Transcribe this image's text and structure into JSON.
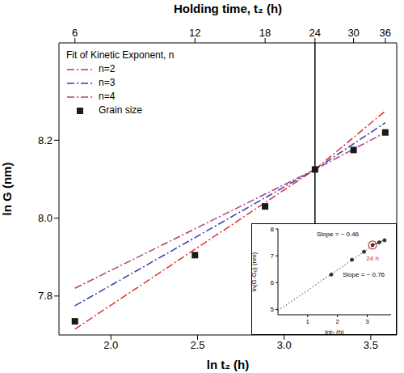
{
  "chart_data": {
    "type": "scatter",
    "x_label": "ln t₂ (h)",
    "y_label": "ln G (nm)",
    "xlim": [
      1.7,
      3.65
    ],
    "xticks": [
      {
        "value": 2,
        "label": "2.0"
      },
      2.5,
      {
        "value": 3,
        "label": "3.0"
      },
      3.5
    ],
    "ylim": [
      7.7,
      8.45
    ],
    "yticks": [
      7.8,
      {
        "value": 8,
        "label": "8.0"
      },
      8.2
    ],
    "top_axis": {
      "label": "Holding time, t₂ (h)",
      "ticks": [
        {
          "value": 1.792,
          "label": "6"
        },
        {
          "value": 2.485,
          "label": "12"
        },
        {
          "value": 2.89,
          "label": "18"
        },
        {
          "value": 3.178,
          "label": "24"
        },
        {
          "value": 3.401,
          "label": "30"
        },
        {
          "value": 3.584,
          "label": "36"
        }
      ]
    },
    "legend_title": "Fit of Kinetic Exponent, n",
    "legend": "upper left",
    "vertical_line": 3.178,
    "series": [
      {
        "name": "n=2",
        "type": "line",
        "color": "#e0302a",
        "line_style": "dashdot",
        "x": [
          1.792,
          3.178,
          3.584
        ],
        "values": [
          7.715,
          8.125,
          8.275
        ]
      },
      {
        "name": "n=3",
        "type": "line",
        "color": "#2d3fb0",
        "line_style": "dashdot",
        "x": [
          1.792,
          3.178,
          3.584
        ],
        "values": [
          7.775,
          8.125,
          8.245
        ]
      },
      {
        "name": "n=4",
        "type": "line",
        "color": "#b0407a",
        "line_style": "dashdot",
        "x": [
          1.792,
          3.178,
          3.584
        ],
        "values": [
          7.82,
          8.125,
          8.22
        ]
      },
      {
        "name": "Grain size",
        "type": "scatter",
        "color": "#1a1a1a",
        "marker": "square",
        "x": [
          1.792,
          2.485,
          2.89,
          3.178,
          3.401,
          3.584
        ],
        "values": [
          7.735,
          7.905,
          8.03,
          8.125,
          8.175,
          8.22
        ]
      }
    ],
    "inset": {
      "type": "scatter",
      "x_label": "lnt₂ (h)",
      "y_label": "ln(G-G₀) (nm)",
      "xlim": [
        0,
        3.8
      ],
      "xticks": [
        1,
        2,
        3
      ],
      "ylim": [
        4.8,
        8
      ],
      "yticks": [
        5,
        6,
        7,
        8
      ],
      "points": {
        "color": "#333333",
        "marker": "circle",
        "x": [
          1.792,
          2.485,
          2.89,
          3.178,
          3.401,
          3.584
        ],
        "values": [
          6.3,
          6.85,
          7.15,
          7.4,
          7.5,
          7.58
        ]
      },
      "fit_line": {
        "color": "#333333",
        "line_style": "dotted",
        "x": [
          0,
          3.178
        ],
        "values": [
          4.95,
          7.37
        ]
      },
      "late_line": {
        "color": "#333333",
        "line_style": "solid",
        "x": [
          3.178,
          3.584
        ],
        "values": [
          7.4,
          7.59
        ]
      },
      "highlight": {
        "x": 3.178,
        "value": 7.4,
        "label": "24 h",
        "color": "#d03030"
      },
      "annotations": [
        "Slope = ~ 0.46",
        "Slope = ~ 0.76"
      ]
    }
  }
}
